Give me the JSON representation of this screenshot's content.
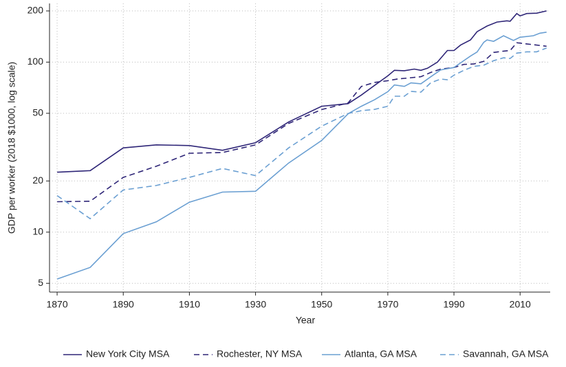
{
  "chart_data": {
    "type": "line",
    "x_label": "Year",
    "y_label": "GDP per worker (2018 $1000, log scale)",
    "log_y": true,
    "grid": true,
    "legend": "bottom",
    "xlim": [
      1867.7,
      2019.1
    ],
    "xticks": [
      1870,
      1890,
      1910,
      1930,
      1950,
      1970,
      1990,
      2010
    ],
    "ylim": [
      4.44,
      221.4
    ],
    "yticks": [
      5,
      10,
      20,
      50,
      100,
      200
    ],
    "series": [
      {
        "name": "New York City MSA",
        "color": "#2e2577",
        "dashed": false,
        "x": [
          1870,
          1880,
          1890,
          1900,
          1910,
          1920,
          1930,
          1940,
          1950,
          1958,
          1962,
          1966,
          1970,
          1972,
          1975,
          1978,
          1980,
          1982,
          1985,
          1988,
          1990,
          1992,
          1995,
          1997,
          2000,
          2003,
          2006,
          2007,
          2009,
          2010,
          2012,
          2015,
          2018
        ],
        "values": [
          22.5,
          23,
          31.3,
          32.6,
          32.3,
          30.3,
          33.6,
          44.5,
          55,
          57,
          64,
          73,
          83,
          89.5,
          89,
          91,
          89.5,
          92,
          100,
          117,
          117,
          126,
          135,
          151,
          163,
          172,
          175,
          174,
          193,
          187,
          193,
          194,
          200
        ]
      },
      {
        "name": "Rochester, NY MSA",
        "color": "#2e2577",
        "dashed": true,
        "x": [
          1870,
          1880,
          1890,
          1900,
          1910,
          1920,
          1930,
          1940,
          1950,
          1958,
          1962,
          1966,
          1970,
          1973,
          1976,
          1980,
          1983,
          1986,
          1990,
          1993,
          1996,
          1999,
          2002,
          2005,
          2007,
          2009,
          2012,
          2015,
          2018
        ],
        "values": [
          15.1,
          15.2,
          21,
          24.4,
          29.1,
          29.4,
          32.6,
          43.6,
          52.6,
          57.5,
          71.9,
          76,
          77.8,
          79.6,
          80.6,
          82.1,
          87,
          91,
          93,
          97,
          97.5,
          101,
          114,
          116,
          117,
          130,
          128,
          126,
          124
        ]
      },
      {
        "name": "Atlanta, GA MSA",
        "color": "#6a9fd2",
        "dashed": false,
        "x": [
          1870,
          1880,
          1890,
          1900,
          1910,
          1920,
          1930,
          1940,
          1950,
          1958,
          1962,
          1966,
          1970,
          1972,
          1975,
          1977,
          1980,
          1983,
          1986,
          1990,
          1992,
          1995,
          1997,
          1999,
          2000,
          2002,
          2005,
          2008,
          2010,
          2014,
          2016,
          2018
        ],
        "values": [
          5.3,
          6.2,
          9.8,
          11.5,
          15,
          17.2,
          17.4,
          25.5,
          34.6,
          49.7,
          55,
          60.1,
          67,
          73.4,
          72,
          75.5,
          74.6,
          82,
          90,
          93,
          99,
          108.5,
          114.7,
          130.7,
          135,
          132.6,
          143,
          134,
          140,
          143,
          148,
          150
        ]
      },
      {
        "name": "Savannah, GA MSA",
        "color": "#6a9fd2",
        "dashed": true,
        "x": [
          1870,
          1880,
          1890,
          1900,
          1910,
          1920,
          1930,
          1940,
          1950,
          1958,
          1962,
          1966,
          1970,
          1972,
          1975,
          1977,
          1980,
          1983,
          1986,
          1988,
          1990,
          1993,
          1996,
          1999,
          2002,
          2005,
          2007,
          2009,
          2012,
          2015,
          2018
        ],
        "values": [
          16.4,
          12,
          17.7,
          18.8,
          21,
          23.7,
          21.5,
          31.3,
          42,
          49.9,
          51.8,
          52.7,
          55,
          63,
          63,
          67.3,
          66.6,
          75.6,
          79.5,
          78.8,
          83.8,
          89.5,
          94.4,
          96,
          102,
          106,
          105,
          113,
          115,
          115,
          121
        ]
      }
    ]
  }
}
